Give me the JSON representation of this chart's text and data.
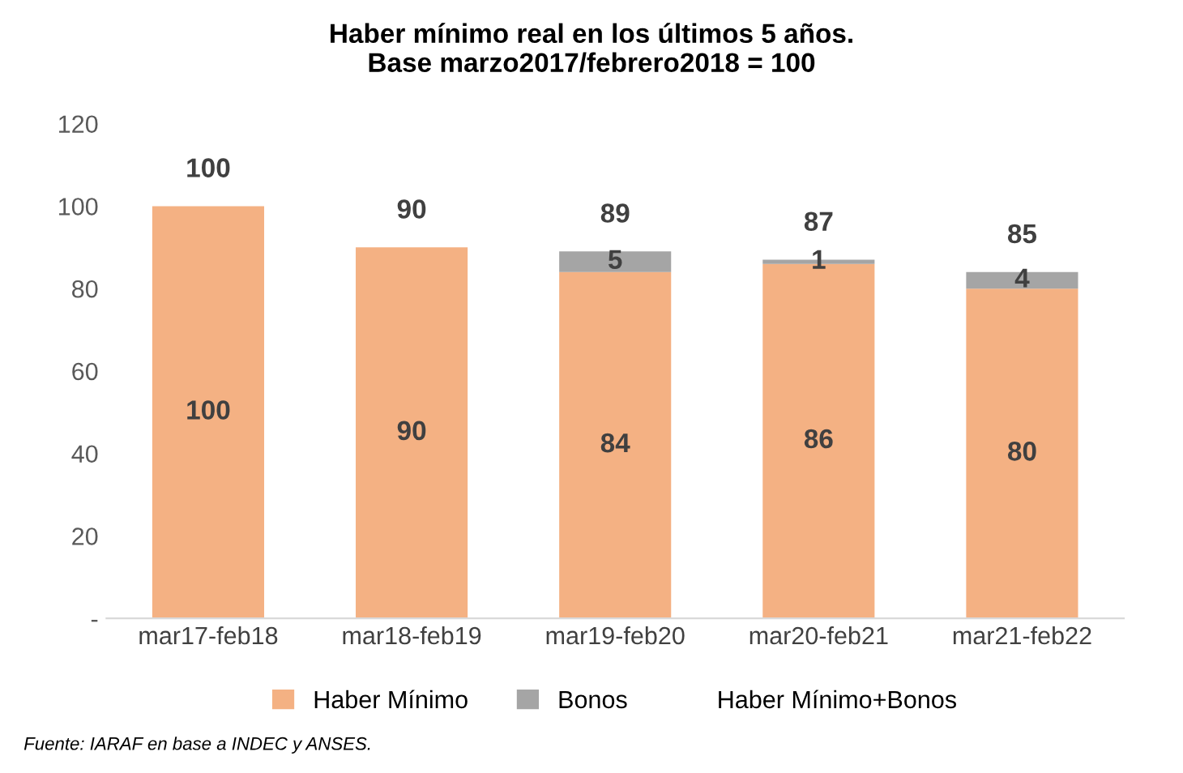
{
  "chart_data": {
    "type": "bar",
    "title": "Haber mínimo real en los últimos 5 años.\nBase marzo2017/febrero2018 = 100",
    "categories": [
      "mar17-feb18",
      "mar18-feb19",
      "mar19-feb20",
      "mar20-feb21",
      "mar21-feb22"
    ],
    "stacked": true,
    "series": [
      {
        "name": "Haber Mínimo",
        "color": "#f4b183",
        "values": [
          100,
          90,
          84,
          86,
          80
        ]
      },
      {
        "name": "Bonos",
        "color": "#a5a5a5",
        "values": [
          null,
          null,
          5,
          1,
          4
        ]
      }
    ],
    "totals": [
      "100",
      "90",
      "89",
      "87",
      "85"
    ],
    "ylim": [
      0,
      120
    ],
    "yticks": [
      {
        "value": 0,
        "label": "-"
      },
      20,
      40,
      60,
      80,
      100,
      120
    ],
    "grid": false,
    "legend": "bottom",
    "data_labels": true,
    "annotations": [
      "Haber Mínimo+Bonos",
      "Fuente: IARAF en base a INDEC y ANSES."
    ]
  }
}
